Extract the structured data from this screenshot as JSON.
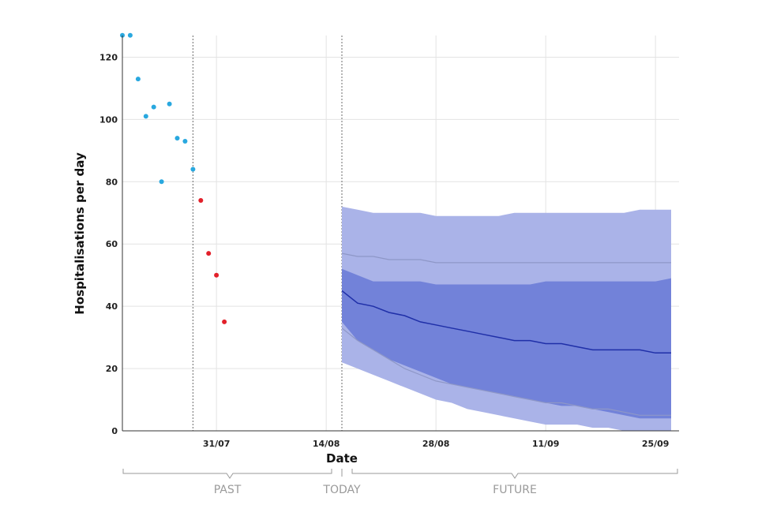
{
  "chart_data": {
    "type": "scatter+area",
    "xlabel": "Date",
    "ylabel": "Hospitalisations per day",
    "ylim": [
      0,
      130
    ],
    "y_ticks": [
      0,
      20,
      40,
      60,
      80,
      100,
      120
    ],
    "x_start_day": 0,
    "x_end_day": 70,
    "x_tick_labels": [
      {
        "day": 12,
        "label": "31/07"
      },
      {
        "day": 26,
        "label": "14/08"
      },
      {
        "day": 40,
        "label": "28/08"
      },
      {
        "day": 54,
        "label": "11/09"
      },
      {
        "day": 68,
        "label": "25/09"
      }
    ],
    "vlines": [
      {
        "day": 9,
        "name": "cutoff-line"
      },
      {
        "day": 28,
        "name": "today-line"
      }
    ],
    "observed_blue": {
      "color": "#29a8df",
      "days": [
        0,
        1,
        2,
        3,
        4,
        5,
        6,
        7,
        8,
        9
      ],
      "values": [
        127,
        127,
        113,
        101,
        104,
        80,
        105,
        94,
        93,
        84
      ]
    },
    "observed_red": {
      "color": "#e2202a",
      "days": [
        10,
        11,
        12,
        13
      ],
      "values": [
        74,
        57,
        50,
        35
      ]
    },
    "forecast": {
      "color_outer": "#aab3e8",
      "color_inner": "#7282d9",
      "color_median": "#1f2fa8",
      "color_ref": "#8e97c7",
      "days": [
        28,
        30,
        32,
        34,
        36,
        38,
        40,
        42,
        44,
        46,
        48,
        50,
        52,
        54,
        56,
        58,
        60,
        62,
        64,
        66,
        68,
        70
      ],
      "upper_outer": [
        72,
        71,
        70,
        70,
        70,
        70,
        69,
        69,
        69,
        69,
        69,
        70,
        70,
        70,
        70,
        70,
        70,
        70,
        70,
        71,
        71,
        71
      ],
      "upper_inner": [
        52,
        50,
        48,
        48,
        48,
        48,
        47,
        47,
        47,
        47,
        47,
        47,
        47,
        48,
        48,
        48,
        48,
        48,
        48,
        48,
        48,
        49
      ],
      "median": [
        45,
        41,
        40,
        38,
        37,
        35,
        34,
        33,
        32,
        31,
        30,
        29,
        29,
        28,
        28,
        27,
        26,
        26,
        26,
        26,
        25,
        25
      ],
      "lower_inner": [
        35,
        29,
        26,
        23,
        21,
        19,
        17,
        15,
        14,
        13,
        12,
        11,
        10,
        9,
        8,
        8,
        7,
        6,
        5,
        4,
        4,
        4
      ],
      "lower_outer": [
        22,
        20,
        18,
        16,
        14,
        12,
        10,
        9,
        7,
        6,
        5,
        4,
        3,
        2,
        2,
        2,
        1,
        1,
        0,
        0,
        0,
        0
      ],
      "ref_upper": [
        57,
        56,
        56,
        55,
        55,
        55,
        54,
        54,
        54,
        54,
        54,
        54,
        54,
        54,
        54,
        54,
        54,
        54,
        54,
        54,
        54,
        54
      ],
      "ref_lower": [
        33,
        29,
        26,
        23,
        20,
        18,
        16,
        15,
        14,
        13,
        12,
        11,
        10,
        9,
        9,
        8,
        7,
        7,
        6,
        5,
        5,
        5
      ]
    },
    "phases": {
      "past": "PAST",
      "today": "TODAY",
      "future": "FUTURE"
    }
  }
}
